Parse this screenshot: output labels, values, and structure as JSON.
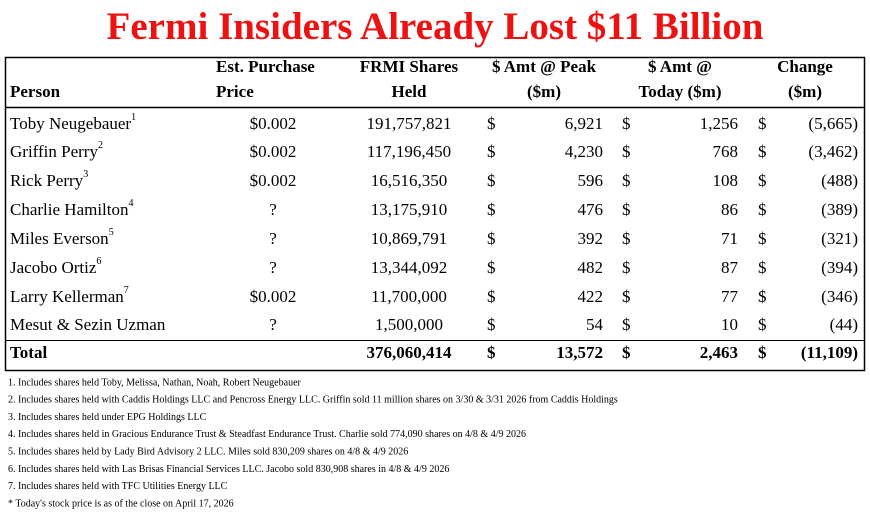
{
  "title": "Fermi Insiders Already Lost $11 Billion",
  "table": {
    "headers": {
      "person": [
        "Person"
      ],
      "price": [
        "Est. Purchase",
        "Price"
      ],
      "shares": [
        "FRMI Shares",
        "Held"
      ],
      "peak": [
        "$ Amt @ Peak",
        "($m)"
      ],
      "today": [
        "$ Amt @",
        "Today ($m)"
      ],
      "change": [
        "Change",
        "($m)"
      ]
    },
    "rows": [
      {
        "person": "Toby Neugebauer",
        "note": "1",
        "price": "$0.002",
        "shares": "191,757,821",
        "peak_sign": "$",
        "peak": "6,921",
        "today_sign": "$",
        "today": "1,256",
        "change_sign": "$",
        "change": "(5,665)"
      },
      {
        "person": "Griffin Perry",
        "note": "2",
        "price": "$0.002",
        "shares": "117,196,450",
        "peak_sign": "$",
        "peak": "4,230",
        "today_sign": "$",
        "today": "768",
        "change_sign": "$",
        "change": "(3,462)"
      },
      {
        "person": "Rick Perry",
        "note": "3",
        "price": "$0.002",
        "shares": "16,516,350",
        "peak_sign": "$",
        "peak": "596",
        "today_sign": "$",
        "today": "108",
        "change_sign": "$",
        "change": "(488)"
      },
      {
        "person": "Charlie Hamilton",
        "note": "4",
        "price": "?",
        "shares": "13,175,910",
        "peak_sign": "$",
        "peak": "476",
        "today_sign": "$",
        "today": "86",
        "change_sign": "$",
        "change": "(389)"
      },
      {
        "person": "Miles Everson",
        "note": "5",
        "price": "?",
        "shares": "10,869,791",
        "peak_sign": "$",
        "peak": "392",
        "today_sign": "$",
        "today": "71",
        "change_sign": "$",
        "change": "(321)"
      },
      {
        "person": "Jacobo Ortiz",
        "note": "6",
        "price": "?",
        "shares": "13,344,092",
        "peak_sign": "$",
        "peak": "482",
        "today_sign": "$",
        "today": "87",
        "change_sign": "$",
        "change": "(394)"
      },
      {
        "person": "Larry Kellerman",
        "note": "7",
        "price": "$0.002",
        "shares": "11,700,000",
        "peak_sign": "$",
        "peak": "422",
        "today_sign": "$",
        "today": "77",
        "change_sign": "$",
        "change": "(346)"
      },
      {
        "person": "Mesut & Sezin Uzman",
        "price": "?",
        "shares": "1,500,000",
        "peak_sign": "$",
        "peak": "54",
        "today_sign": "$",
        "today": "10",
        "change_sign": "$",
        "change": "(44)"
      }
    ],
    "total": {
      "person": "Total",
      "shares": "376,060,414",
      "peak_sign": "$",
      "peak": "13,572",
      "today_sign": "$",
      "today": "2,463",
      "change_sign": "$",
      "change": "(11,109)"
    }
  },
  "footnotes": [
    "1. Includes shares held Toby, Melissa, Nathan, Noah, Robert Neugebauer",
    "2. Includes shares held with Caddis Holdings LLC and Pencross Energy LLC. Griffin sold 11 million shares on 3/30 & 3/31 2026 from Caddis Holdings",
    "3. Includes shares held under EPG Holdings LLC",
    "4. Includes shares held in Gracious Endurance Trust & Steadfast Endurance Trust. Charlie sold 774,090 shares on 4/8 & 4/9 2026",
    "5. Includes shares held by Lady Bird Advisory 2 LLC. Miles sold 830,209 shares on 4/8 & 4/9 2026",
    "6. Includes shares held with Las Brisas Financial Services LLC. Jacobo sold 830,908 shares in 4/8 & 4/9 2026",
    "7. Includes shares held with TFC Utilities Energy LLC",
    "* Today's stock price is as of the close on April 17, 2026"
  ]
}
